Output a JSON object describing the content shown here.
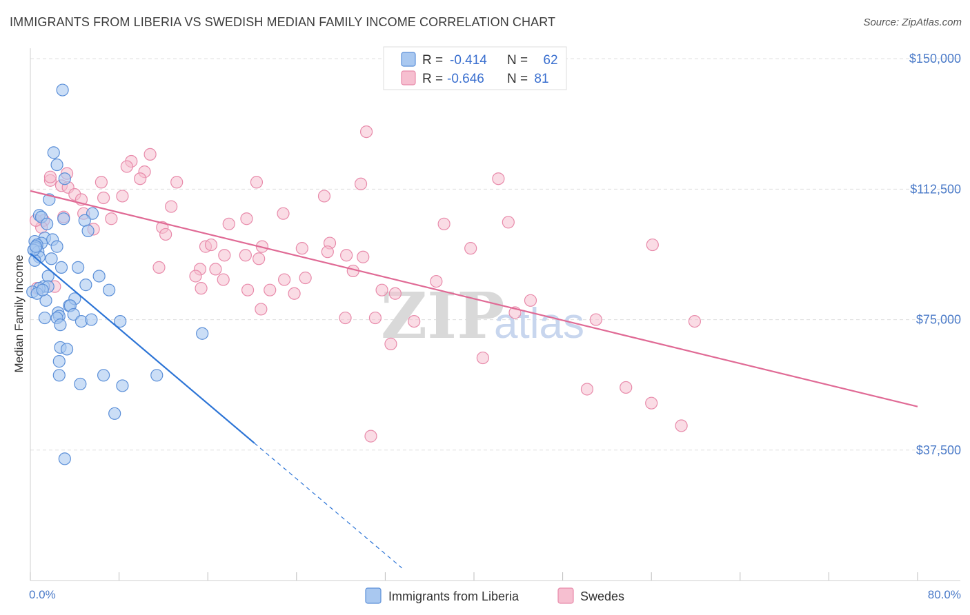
{
  "title": "IMMIGRANTS FROM LIBERIA VS SWEDISH MEDIAN FAMILY INCOME CORRELATION CHART",
  "source": "Source: ZipAtlas.com",
  "legend": {
    "r_label": "R =",
    "n_label": "N =",
    "series1": {
      "r": "-0.414",
      "n": "62"
    },
    "series2": {
      "r": "-0.646",
      "n": "81"
    }
  },
  "watermark": {
    "zip": "ZIP",
    "atlas": "atlas"
  },
  "colors": {
    "liberia_fill": "#a9c8f0",
    "liberia_stroke": "#5b8fd8",
    "liberia_line": "#2c74d6",
    "swedes_fill": "#f6bfd0",
    "swedes_stroke": "#e88aaa",
    "swedes_line": "#e06a95",
    "tick_text": "#4a7ac8"
  },
  "chart_data": {
    "type": "scatter",
    "title": "IMMIGRANTS FROM LIBERIA VS SWEDISH MEDIAN FAMILY INCOME CORRELATION CHART",
    "xlabel": "",
    "ylabel": "Median Family Income",
    "xlim": [
      0,
      80
    ],
    "ylim": [
      0,
      153000
    ],
    "x_tick_labels": [
      "0.0%",
      "80.0%"
    ],
    "y_ticks": [
      37500,
      75000,
      112500,
      150000
    ],
    "y_tick_labels": [
      "$37,500",
      "$75,000",
      "$112,500",
      "$150,000"
    ],
    "grid": true,
    "series": [
      {
        "name": "Immigrants from Liberia",
        "trend": {
          "x0": 0,
          "y0": 94000,
          "x1": 20.2,
          "y1": 39500,
          "dash_to_x": 33.5
        },
        "points": [
          [
            2.9,
            141000
          ],
          [
            2.1,
            123000
          ],
          [
            2.4,
            119500
          ],
          [
            3.1,
            115500
          ],
          [
            1.7,
            109500
          ],
          [
            0.8,
            105000
          ],
          [
            1.0,
            104500
          ],
          [
            3.0,
            104000
          ],
          [
            5.6,
            105500
          ],
          [
            1.5,
            102500
          ],
          [
            4.9,
            103500
          ],
          [
            5.2,
            100500
          ],
          [
            1.3,
            98500
          ],
          [
            2.0,
            98000
          ],
          [
            0.4,
            97500
          ],
          [
            1.0,
            97000
          ],
          [
            0.6,
            96500
          ],
          [
            2.4,
            96000
          ],
          [
            0.5,
            95500
          ],
          [
            0.3,
            95000
          ],
          [
            0.7,
            94500
          ],
          [
            0.8,
            93000
          ],
          [
            1.9,
            92500
          ],
          [
            0.4,
            92000
          ],
          [
            2.8,
            90000
          ],
          [
            4.3,
            90000
          ],
          [
            1.6,
            87500
          ],
          [
            6.2,
            87500
          ],
          [
            1.2,
            84500
          ],
          [
            1.6,
            84500
          ],
          [
            0.8,
            84000
          ],
          [
            5.0,
            85000
          ],
          [
            7.1,
            83500
          ],
          [
            1.4,
            80500
          ],
          [
            3.5,
            79000
          ],
          [
            4.0,
            81000
          ],
          [
            3.6,
            79000
          ],
          [
            3.9,
            76500
          ],
          [
            2.5,
            77000
          ],
          [
            2.6,
            76000
          ],
          [
            1.3,
            75500
          ],
          [
            2.4,
            75500
          ],
          [
            4.6,
            74500
          ],
          [
            5.5,
            75000
          ],
          [
            8.1,
            74500
          ],
          [
            2.7,
            73500
          ],
          [
            2.7,
            67000
          ],
          [
            3.3,
            66500
          ],
          [
            2.6,
            63000
          ],
          [
            15.5,
            71000
          ],
          [
            2.6,
            59000
          ],
          [
            6.6,
            59000
          ],
          [
            11.4,
            59000
          ],
          [
            4.5,
            56500
          ],
          [
            8.3,
            56000
          ],
          [
            7.6,
            48000
          ],
          [
            3.1,
            35000
          ],
          [
            0.2,
            83000
          ],
          [
            0.6,
            82500
          ],
          [
            1.1,
            83500
          ],
          [
            0.3,
            95000
          ],
          [
            0.5,
            96000
          ]
        ]
      },
      {
        "name": "Swedes",
        "trend": {
          "x0": 0,
          "y0": 112000,
          "x1": 80,
          "y1": 50000
        },
        "points": [
          [
            30.3,
            129000
          ],
          [
            10.8,
            122500
          ],
          [
            9.1,
            120500
          ],
          [
            8.7,
            119000
          ],
          [
            10.3,
            117500
          ],
          [
            3.3,
            117000
          ],
          [
            9.9,
            115500
          ],
          [
            1.8,
            115000
          ],
          [
            6.4,
            114500
          ],
          [
            13.2,
            114500
          ],
          [
            20.4,
            114500
          ],
          [
            29.8,
            114000
          ],
          [
            42.2,
            115500
          ],
          [
            2.8,
            113500
          ],
          [
            3.4,
            113000
          ],
          [
            8.3,
            110500
          ],
          [
            26.5,
            110500
          ],
          [
            4.0,
            111000
          ],
          [
            6.6,
            110000
          ],
          [
            4.6,
            109500
          ],
          [
            12.7,
            107500
          ],
          [
            4.8,
            105500
          ],
          [
            22.8,
            105500
          ],
          [
            7.3,
            104000
          ],
          [
            3.0,
            104500
          ],
          [
            19.5,
            104000
          ],
          [
            1.2,
            103500
          ],
          [
            17.9,
            102500
          ],
          [
            37.3,
            102500
          ],
          [
            43.1,
            103000
          ],
          [
            11.9,
            101500
          ],
          [
            5.7,
            101000
          ],
          [
            12.2,
            99500
          ],
          [
            15.8,
            96000
          ],
          [
            16.3,
            96500
          ],
          [
            20.9,
            96000
          ],
          [
            24.5,
            95500
          ],
          [
            27.0,
            97000
          ],
          [
            39.7,
            95500
          ],
          [
            56.1,
            96500
          ],
          [
            17.5,
            93500
          ],
          [
            19.4,
            93500
          ],
          [
            20.6,
            92500
          ],
          [
            26.8,
            94500
          ],
          [
            28.5,
            93500
          ],
          [
            30.0,
            93000
          ],
          [
            11.6,
            90000
          ],
          [
            15.3,
            89500
          ],
          [
            16.7,
            89500
          ],
          [
            29.1,
            89000
          ],
          [
            24.8,
            87000
          ],
          [
            22.9,
            86500
          ],
          [
            14.9,
            87500
          ],
          [
            17.4,
            86500
          ],
          [
            36.6,
            86000
          ],
          [
            15.4,
            84000
          ],
          [
            21.6,
            83500
          ],
          [
            19.6,
            83500
          ],
          [
            23.8,
            82500
          ],
          [
            31.7,
            83500
          ],
          [
            32.9,
            82500
          ],
          [
            45.1,
            80500
          ],
          [
            20.8,
            78000
          ],
          [
            43.7,
            77000
          ],
          [
            28.4,
            75500
          ],
          [
            31.1,
            75500
          ],
          [
            34.6,
            74500
          ],
          [
            51.0,
            75000
          ],
          [
            59.9,
            74500
          ],
          [
            32.5,
            68000
          ],
          [
            0.6,
            84000
          ],
          [
            2.2,
            84500
          ],
          [
            40.8,
            64000
          ],
          [
            50.2,
            55000
          ],
          [
            53.7,
            55500
          ],
          [
            56.0,
            51000
          ],
          [
            58.7,
            44500
          ],
          [
            30.7,
            41500
          ],
          [
            1.0,
            101500
          ],
          [
            1.8,
            116000
          ],
          [
            0.5,
            103500
          ]
        ]
      }
    ]
  },
  "bottom_legend": [
    "Immigrants from Liberia",
    "Swedes"
  ]
}
